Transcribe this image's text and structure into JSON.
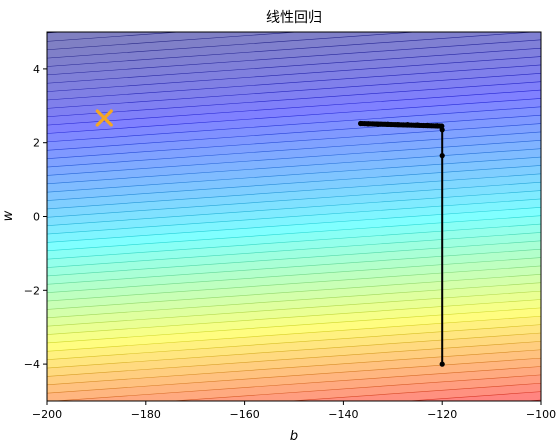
{
  "chart_data": {
    "type": "contour",
    "title": "线性回归",
    "xlabel": "b",
    "ylabel": "w",
    "xlim": [
      -200,
      -100
    ],
    "ylim": [
      -5,
      5
    ],
    "x_ticks": [
      -200,
      -180,
      -160,
      -140,
      -120,
      -100
    ],
    "y_ticks": [
      -4,
      -2,
      0,
      2,
      4
    ],
    "colormap": "jet",
    "contour_levels": 50,
    "optimum_marker": {
      "b": -188.4,
      "w": 2.67,
      "symbol": "x",
      "color": "#f5a623"
    },
    "gradient_descent_path": {
      "color": "#000000",
      "points": [
        {
          "b": -120.0,
          "w": -4.0
        },
        {
          "b": -120.0,
          "w": 1.65
        },
        {
          "b": -120.0,
          "w": 2.35
        },
        {
          "b": -120.1,
          "w": 2.45
        },
        {
          "b": -121.0,
          "w": 2.46
        },
        {
          "b": -123.0,
          "w": 2.47
        },
        {
          "b": -125.0,
          "w": 2.48
        },
        {
          "b": -127.0,
          "w": 2.49
        },
        {
          "b": -129.0,
          "w": 2.49
        },
        {
          "b": -131.0,
          "w": 2.5
        },
        {
          "b": -133.0,
          "w": 2.5
        },
        {
          "b": -135.0,
          "w": 2.51
        },
        {
          "b": -136.5,
          "w": 2.52
        }
      ]
    }
  }
}
